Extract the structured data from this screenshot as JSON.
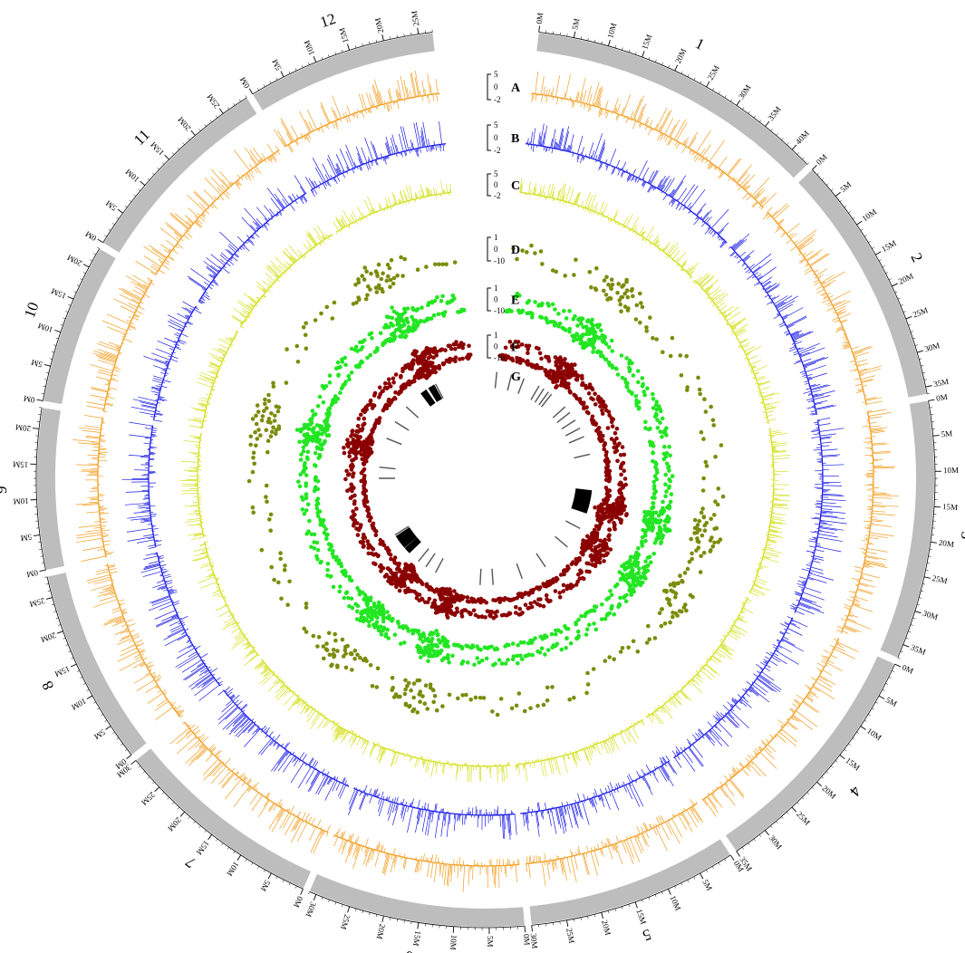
{
  "chart_data": {
    "type": "circos",
    "tick_step_mb": 5,
    "tick_unit": "M",
    "chromosomes": [
      {
        "name": "1",
        "length_mb": 43
      },
      {
        "name": "2",
        "length_mb": 36
      },
      {
        "name": "3",
        "length_mb": 37
      },
      {
        "name": "4",
        "length_mb": 35
      },
      {
        "name": "5",
        "length_mb": 30
      },
      {
        "name": "6",
        "length_mb": 31
      },
      {
        "name": "7",
        "length_mb": 30
      },
      {
        "name": "8",
        "length_mb": 28
      },
      {
        "name": "9",
        "length_mb": 23
      },
      {
        "name": "10",
        "length_mb": 23
      },
      {
        "name": "11",
        "length_mb": 29
      },
      {
        "name": "12",
        "length_mb": 27
      }
    ],
    "tracks": [
      {
        "letter": "A",
        "kind": "histogram",
        "color": "#F39C1E",
        "scale": [
          "5",
          "0",
          "-2"
        ]
      },
      {
        "letter": "B",
        "kind": "histogram",
        "color": "#1A1AE6",
        "scale": [
          "5",
          "0",
          "-2"
        ]
      },
      {
        "letter": "C",
        "kind": "histogram",
        "color": "#D4E01E",
        "scale": [
          "5",
          "0",
          "-2"
        ]
      },
      {
        "letter": "D",
        "kind": "scatter",
        "color": "#7A8C0A",
        "scale": [
          "1",
          "0",
          "-10"
        ]
      },
      {
        "letter": "E",
        "kind": "scatter",
        "color": "#22E622",
        "scale": [
          "1",
          "0",
          "-10"
        ]
      },
      {
        "letter": "F",
        "kind": "scatter",
        "color": "#8B0000",
        "scale": [
          "1",
          "0",
          "-10"
        ]
      },
      {
        "letter": "G",
        "kind": "marks",
        "color": "#000000",
        "scale": []
      }
    ],
    "colors": {
      "ideogram": "#BDBDBD",
      "background": "#FFFFFF"
    }
  }
}
